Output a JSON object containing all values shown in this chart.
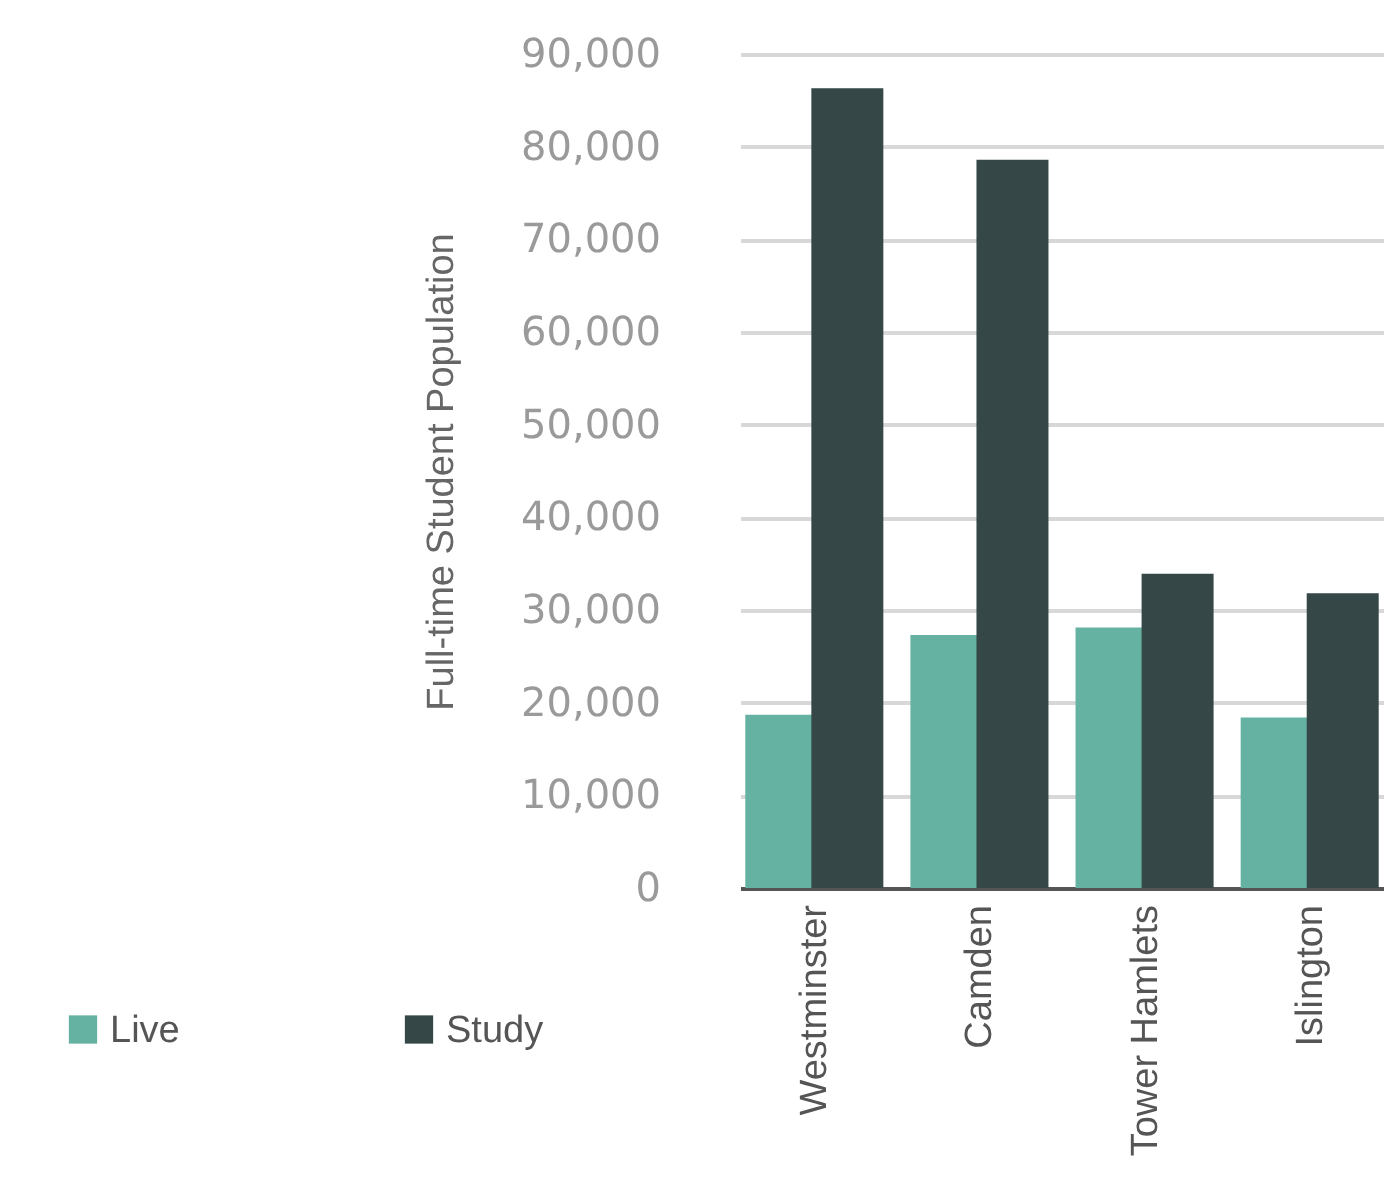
{
  "chart_data": {
    "type": "bar",
    "ylabel": "Full-time Student Population",
    "categories": [
      "Westminster",
      "Camden",
      "Tower Hamlets",
      "Islington"
    ],
    "series": [
      {
        "name": "Live",
        "color": "#66b2a2",
        "values": [
          18700,
          27300,
          28100,
          18400
        ]
      },
      {
        "name": "Study",
        "color": "#354847",
        "values": [
          86300,
          78600,
          33900,
          31800
        ]
      }
    ],
    "ylim": [
      0,
      90000
    ],
    "yticks": [
      0,
      {
        "value": 10000,
        "label": "10,000"
      },
      {
        "value": 20000,
        "label": "20,000"
      },
      {
        "value": 30000,
        "label": "30,000"
      },
      {
        "value": 40000,
        "label": "40,000"
      },
      {
        "value": 50000,
        "label": "50,000"
      },
      {
        "value": 60000,
        "label": "60,000"
      },
      {
        "value": 70000,
        "label": "70,000"
      },
      {
        "value": 80000,
        "label": "80,000"
      },
      {
        "value": 90000,
        "label": "90,000"
      }
    ],
    "grid": "y",
    "legend": "bottom"
  }
}
